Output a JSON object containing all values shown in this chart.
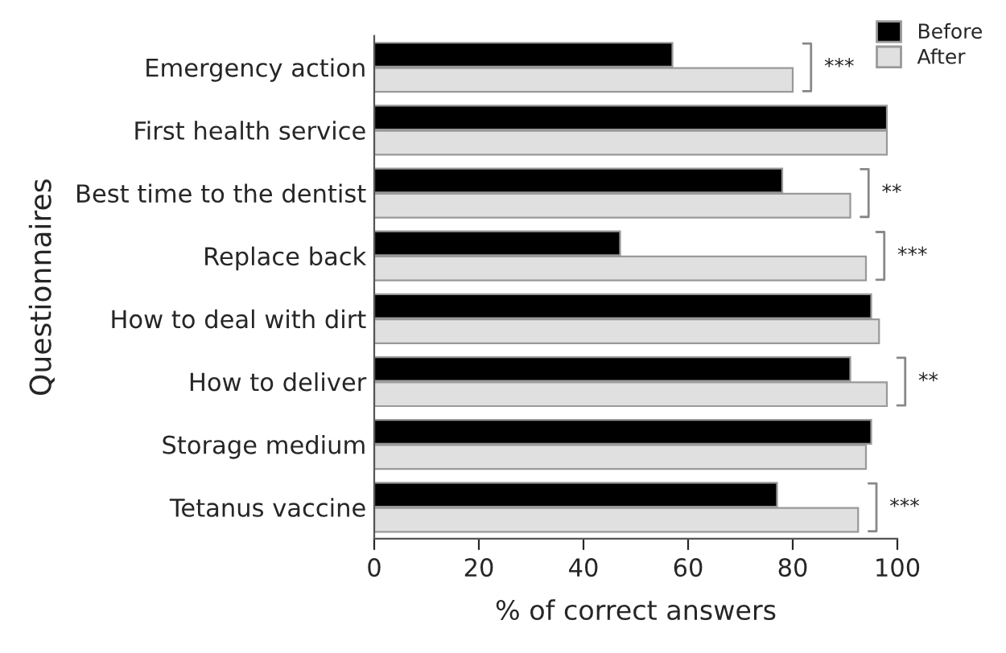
{
  "chart_data": {
    "type": "bar",
    "orientation": "horizontal",
    "xlabel": "% of correct answers",
    "ylabel": "Questionnaires",
    "categories": [
      "Emergency action",
      "First health service",
      "Best time to the dentist",
      "Replace back",
      "How to deal with dirt",
      "How to deliver",
      "Storage medium",
      "Tetanus vaccine"
    ],
    "series": [
      {
        "name": "Before",
        "color": "#000000",
        "values": [
          57,
          98,
          78,
          47,
          95,
          91,
          95,
          77
        ]
      },
      {
        "name": "After",
        "color": "#e0e0e0",
        "values": [
          80,
          98,
          91,
          94,
          96.5,
          98,
          94,
          92.5
        ]
      }
    ],
    "xlim": [
      0,
      100
    ],
    "xticks": [
      0,
      20,
      40,
      60,
      80,
      100
    ],
    "grid": false,
    "legend": "top right",
    "annotations": [
      "***",
      "**",
      "***",
      "**",
      "***"
    ]
  }
}
